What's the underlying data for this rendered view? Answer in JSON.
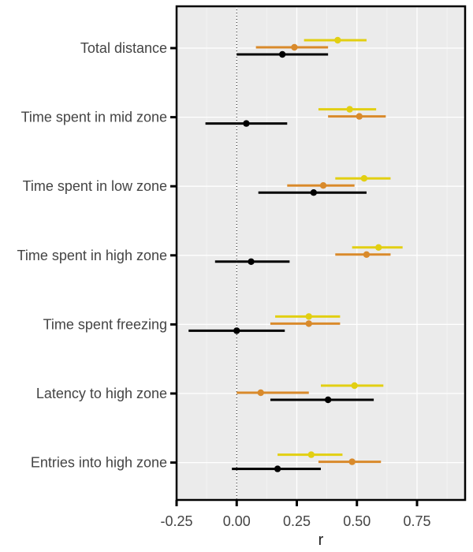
{
  "chart_data": {
    "type": "forest",
    "xlabel": "r",
    "xlim": [
      -0.25,
      0.95
    ],
    "x_ticks": [
      -0.25,
      0.0,
      0.25,
      0.5,
      0.75
    ],
    "x_tick_labels": [
      "-0.25",
      "0.00",
      "0.25",
      "0.50",
      "0.75"
    ],
    "reference_line": 0,
    "grid": true,
    "categories": [
      "Total distance",
      "Time spent in mid zone",
      "Time spent in low zone",
      "Time spent in high zone",
      "Time spent freezing",
      "Latency to high zone",
      "Entries into high zone"
    ],
    "series": [
      {
        "color": "#E2CF12",
        "estimates": [
          0.42,
          0.47,
          0.53,
          0.59,
          0.3,
          0.49,
          0.31
        ],
        "lower": [
          0.28,
          0.34,
          0.41,
          0.48,
          0.16,
          0.35,
          0.17
        ],
        "upper": [
          0.54,
          0.58,
          0.64,
          0.69,
          0.43,
          0.61,
          0.44
        ]
      },
      {
        "color": "#D98A2B",
        "estimates": [
          0.24,
          0.51,
          0.36,
          0.54,
          0.3,
          0.1,
          0.48
        ],
        "lower": [
          0.08,
          0.38,
          0.21,
          0.41,
          0.14,
          0.0,
          0.34
        ],
        "upper": [
          0.38,
          0.62,
          0.49,
          0.64,
          0.43,
          0.3,
          0.6
        ]
      },
      {
        "color": "#000000",
        "estimates": [
          0.19,
          0.04,
          0.32,
          0.06,
          0.0,
          0.38,
          0.17
        ],
        "lower": [
          0.0,
          -0.13,
          0.09,
          -0.09,
          -0.2,
          0.14,
          -0.02
        ],
        "upper": [
          0.38,
          0.21,
          0.54,
          0.22,
          0.2,
          0.57,
          0.35
        ]
      }
    ]
  }
}
